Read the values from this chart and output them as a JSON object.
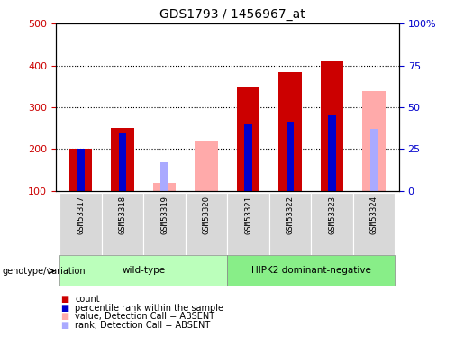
{
  "title": "GDS1793 / 1456967_at",
  "samples": [
    "GSM53317",
    "GSM53318",
    "GSM53319",
    "GSM53320",
    "GSM53321",
    "GSM53322",
    "GSM53323",
    "GSM53324"
  ],
  "baseline": 100,
  "ylim_left": [
    100,
    500
  ],
  "ylim_right": [
    0,
    100
  ],
  "yticks_left": [
    100,
    200,
    300,
    400,
    500
  ],
  "ytick_labels_left": [
    "100",
    "200",
    "300",
    "400",
    "500"
  ],
  "yticks_right": [
    0,
    25,
    50,
    75,
    100
  ],
  "ytick_labels_right": [
    "0",
    "25",
    "50",
    "75",
    "100%"
  ],
  "count_values": [
    200,
    250,
    null,
    null,
    350,
    385,
    410,
    null
  ],
  "percentile_values": [
    200,
    237,
    null,
    null,
    260,
    265,
    280,
    null
  ],
  "absent_value": [
    null,
    null,
    120,
    220,
    null,
    null,
    null,
    340
  ],
  "absent_rank": [
    null,
    null,
    168,
    null,
    null,
    null,
    null,
    248
  ],
  "color_count": "#cc0000",
  "color_percentile": "#0000cc",
  "color_absent_value": "#ffaaaa",
  "color_absent_rank": "#aaaaff",
  "groups": [
    {
      "label": "wild-type",
      "start": 0,
      "end": 3,
      "color": "#bbffbb"
    },
    {
      "label": "HIPK2 dominant-negative",
      "start": 4,
      "end": 7,
      "color": "#88ee88"
    }
  ],
  "grid_yticks": [
    200,
    300,
    400
  ],
  "left_label_color": "#cc0000",
  "right_label_color": "#0000cc",
  "group_label": "genotype/variation",
  "legend_items": [
    {
      "color": "#cc0000",
      "label": "count"
    },
    {
      "color": "#0000cc",
      "label": "percentile rank within the sample"
    },
    {
      "color": "#ffaaaa",
      "label": "value, Detection Call = ABSENT"
    },
    {
      "color": "#aaaaff",
      "label": "rank, Detection Call = ABSENT"
    }
  ]
}
